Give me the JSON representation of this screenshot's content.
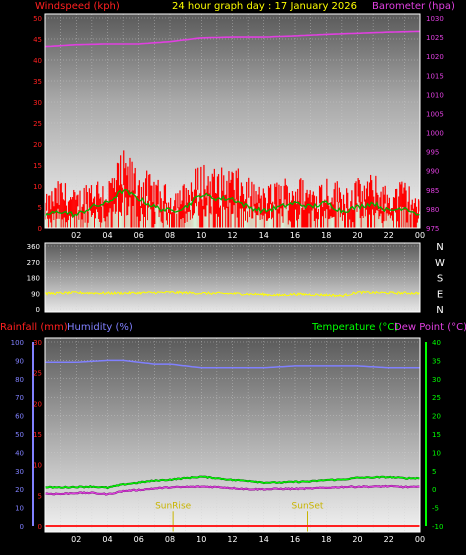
{
  "header": {
    "windspeed_label": "Windspeed (kph)",
    "title": "24 hour graph day : 17 January 2026",
    "barometer_label": "Barometer (hpa)"
  },
  "colors": {
    "background": "#000000",
    "windspeed": "#ff0000",
    "wind_avg": "#00c000",
    "wind_light": "#d8f0d8",
    "barometer": "#e040e0",
    "direction": "#ffff00",
    "rainfall": "#ff2020",
    "humidity": "#8080ff",
    "temperature": "#00ff00",
    "dewpoint": "#e040e0",
    "marker": "#c8b400",
    "grid": "#d0d0d0"
  },
  "time_ticks": [
    "02",
    "04",
    "06",
    "08",
    "10",
    "12",
    "14",
    "16",
    "18",
    "20",
    "22",
    "00"
  ],
  "chart_data": [
    {
      "type": "line",
      "name": "wind-and-barometer",
      "x": [
        "02",
        "04",
        "06",
        "08",
        "10",
        "12",
        "14",
        "16",
        "18",
        "20",
        "22",
        "00"
      ],
      "yaxis_left": {
        "label": "Windspeed (kph)",
        "ticks": [
          "0",
          "5",
          "10",
          "15",
          "20",
          "25",
          "30",
          "35",
          "40",
          "45",
          "50"
        ],
        "range": [
          0,
          50
        ]
      },
      "yaxis_right": {
        "label": "Barometer (hpa)",
        "ticks": [
          "975",
          "980",
          "985",
          "990",
          "995",
          "1000",
          "1005",
          "1010",
          "1015",
          "1020",
          "1025",
          "1030"
        ],
        "range": [
          975,
          1030
        ]
      },
      "series": [
        {
          "name": "Barometer (hpa)",
          "axis": "right",
          "x": [
            0,
            2,
            4,
            6,
            8,
            10,
            12,
            14,
            16,
            18,
            20,
            22,
            24
          ],
          "values": [
            1022.5,
            1023.0,
            1023.2,
            1023.2,
            1023.8,
            1024.8,
            1025.0,
            1025.0,
            1025.3,
            1025.7,
            1026.0,
            1026.3,
            1026.5
          ]
        },
        {
          "name": "Windspeed gust (kph)",
          "axis": "left",
          "x": [
            0,
            1,
            2,
            3,
            4,
            5,
            6,
            7,
            8,
            9,
            10,
            11,
            12,
            13,
            14,
            15,
            16,
            17,
            18,
            19,
            20,
            21,
            22,
            23,
            24
          ],
          "values": [
            7,
            11,
            8,
            12,
            11,
            17,
            14,
            11,
            9,
            10,
            15,
            13,
            14,
            11,
            9,
            11,
            12,
            10,
            12,
            10,
            11,
            12,
            9,
            11,
            6
          ]
        },
        {
          "name": "Windspeed avg (kph)",
          "axis": "left",
          "x": [
            0,
            1,
            2,
            3,
            4,
            5,
            6,
            7,
            8,
            9,
            10,
            11,
            12,
            13,
            14,
            15,
            16,
            17,
            18,
            19,
            20,
            21,
            22,
            23,
            24
          ],
          "values": [
            3,
            4,
            3,
            5,
            6,
            9,
            7,
            5,
            4,
            5,
            8,
            7,
            7,
            5,
            4,
            5,
            6,
            5,
            6,
            4,
            5,
            6,
            4,
            5,
            3
          ]
        }
      ]
    },
    {
      "type": "line",
      "name": "wind-direction",
      "x": [
        "02",
        "04",
        "06",
        "08",
        "10",
        "12",
        "14",
        "16",
        "18",
        "20",
        "22",
        "00"
      ],
      "yaxis_left": {
        "ticks": [
          "0",
          "90",
          "180",
          "270",
          "360"
        ],
        "range": [
          0,
          360
        ]
      },
      "yaxis_right": {
        "ticks": [
          "N",
          "E",
          "S",
          "W",
          "N"
        ]
      },
      "series": [
        {
          "name": "Wind direction (deg)",
          "x": [
            0,
            2,
            4,
            6,
            8,
            10,
            12,
            14,
            15,
            16,
            18,
            19,
            20,
            22,
            24
          ],
          "values": [
            88,
            93,
            90,
            92,
            95,
            90,
            88,
            83,
            78,
            85,
            80,
            75,
            95,
            92,
            90
          ]
        }
      ]
    },
    {
      "type": "line",
      "name": "rain-humidity-temperature",
      "x": [
        "02",
        "04",
        "06",
        "08",
        "10",
        "12",
        "14",
        "16",
        "18",
        "20",
        "22",
        "00"
      ],
      "yaxis_left": {
        "label": "Rainfall (mm)",
        "ticks": [
          "0",
          "5",
          "10",
          "15",
          "20",
          "25",
          "30"
        ],
        "range": [
          0,
          30
        ]
      },
      "yaxis_humidity": {
        "label": "Humidity (%)",
        "ticks": [
          "0",
          "10",
          "20",
          "30",
          "40",
          "50",
          "60",
          "70",
          "80",
          "90",
          "100"
        ],
        "range": [
          0,
          100
        ]
      },
      "yaxis_right": {
        "label": "Temperature (°C)",
        "ticks": [
          "-10",
          "-5",
          "0",
          "5",
          "10",
          "15",
          "20",
          "25",
          "30",
          "35",
          "40"
        ],
        "range": [
          -10,
          40
        ]
      },
      "right_label_2": "Dew Point (°C)",
      "annotations": [
        {
          "label": "SunRise",
          "x": 8.2
        },
        {
          "label": "SunSet",
          "x": 16.8
        }
      ],
      "series": [
        {
          "name": "Humidity (%)",
          "x": [
            0,
            2,
            4,
            5,
            6,
            7,
            8,
            9,
            10,
            12,
            14,
            16,
            18,
            20,
            22,
            24
          ],
          "values": [
            89,
            89,
            90,
            90,
            89,
            88,
            88,
            87,
            86,
            86,
            86,
            87,
            87,
            87,
            86,
            86
          ]
        },
        {
          "name": "Temperature (°C)",
          "x": [
            0,
            1,
            2,
            3,
            4,
            5,
            6,
            7,
            8,
            9,
            10,
            11,
            12,
            13,
            14,
            15,
            16,
            17,
            18,
            19,
            20,
            21,
            22,
            23,
            24
          ],
          "values": [
            0.5,
            0.5,
            0.6,
            0.7,
            0.4,
            1.3,
            1.8,
            2.3,
            2.6,
            3.0,
            3.4,
            3.0,
            2.5,
            2.3,
            1.8,
            1.8,
            2.0,
            2.1,
            2.5,
            2.6,
            3.1,
            3.2,
            3.3,
            3.0,
            3.0
          ]
        },
        {
          "name": "Dew Point (°C)",
          "x": [
            0,
            1,
            2,
            3,
            4,
            5,
            6,
            7,
            8,
            9,
            10,
            11,
            12,
            13,
            14,
            15,
            16,
            17,
            18,
            19,
            20,
            21,
            22,
            23,
            24
          ],
          "values": [
            -1.2,
            -1.3,
            -1.0,
            -1.0,
            -1.4,
            -0.5,
            -0.2,
            0.2,
            0.5,
            0.6,
            0.7,
            0.6,
            0.3,
            0.0,
            0.0,
            0.1,
            0.1,
            0.2,
            0.4,
            0.6,
            0.7,
            0.7,
            0.8,
            0.6,
            0.6
          ]
        },
        {
          "name": "Rainfall (mm)",
          "x": [
            0,
            24
          ],
          "values": [
            0,
            0
          ]
        }
      ]
    }
  ],
  "panel3": {
    "rainfall_label": "Rainfall (mm)",
    "humidity_label": "Humidity (%)",
    "temperature_label": "Temperature (°C)",
    "dewpoint_label": "Dew Point (°C)",
    "sunrise": "SunRise",
    "sunset": "SunSet"
  }
}
